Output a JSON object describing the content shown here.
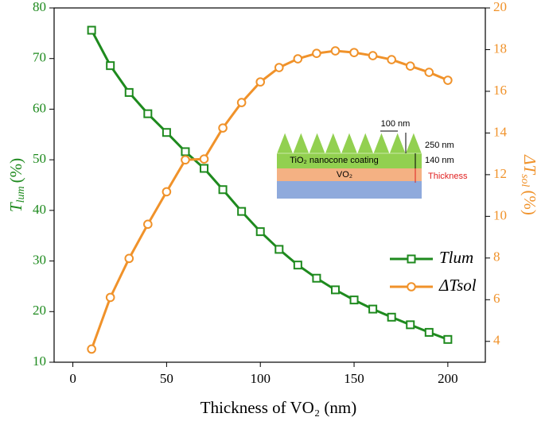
{
  "chart_data": {
    "type": "line",
    "x_label": "Thickness of VO₂ (nm)",
    "y_label": {
      "main": "T",
      "sub": "lum",
      "unit": "(%)"
    },
    "y2_label": {
      "main": "ΔT",
      "sub": "sol",
      "unit": "(%)"
    },
    "x": [
      10,
      20,
      30,
      40,
      50,
      60,
      70,
      80,
      90,
      100,
      110,
      120,
      130,
      140,
      150,
      160,
      170,
      180,
      190,
      200
    ],
    "series": [
      {
        "name": "Tlum",
        "color": "#1e8a1e",
        "marker": "square",
        "values": [
          75.6,
          68.6,
          63.3,
          59.1,
          55.4,
          51.6,
          48.3,
          44.1,
          39.8,
          35.8,
          32.3,
          29.2,
          26.6,
          24.3,
          22.3,
          20.5,
          18.9,
          17.4,
          15.9,
          14.5
        ]
      },
      {
        "name": "ΔTsol",
        "color": "#f0922a",
        "marker": "circle",
        "axis": "y2",
        "values": [
          3.63,
          6.11,
          7.98,
          9.62,
          11.18,
          12.71,
          12.75,
          14.24,
          15.46,
          16.45,
          17.14,
          17.56,
          17.82,
          17.94,
          17.86,
          17.71,
          17.52,
          17.21,
          16.91,
          16.53
        ]
      }
    ],
    "xlim": [
      -10,
      220
    ],
    "xticks": [
      0,
      50,
      100,
      150,
      200
    ],
    "ylim": [
      10,
      80
    ],
    "yticks": [
      10,
      20,
      30,
      40,
      50,
      60,
      70,
      80
    ],
    "y2lim": [
      3,
      20
    ],
    "y2ticks": [
      4,
      6,
      8,
      10,
      12,
      14,
      16,
      18,
      20
    ],
    "legend": "right",
    "inset": {
      "coating": "TiO₂ nanocone coating",
      "layer": "VO₂",
      "pitch": "100 nm",
      "height": "250 nm",
      "coating_thickness": "140 nm",
      "thickness": "Thickness"
    }
  }
}
